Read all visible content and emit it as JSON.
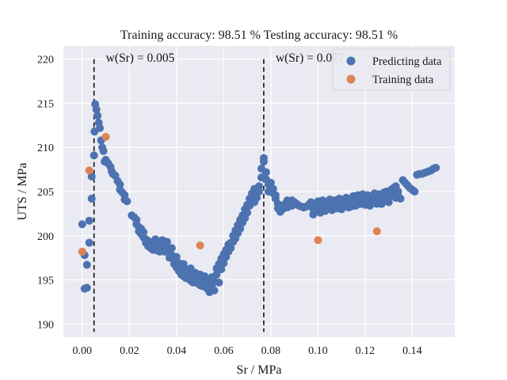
{
  "chart_data": {
    "type": "scatter",
    "title": "Training accuracy: 98.51 %  Testing accuracy: 98.51 %",
    "xlabel": "Sr / MPa",
    "ylabel": "UTS / MPa",
    "xlim": [
      -0.008,
      0.158
    ],
    "ylim": [
      188.5,
      221.5
    ],
    "xticks": [
      0.0,
      0.02,
      0.04,
      0.06,
      0.08,
      0.1,
      0.12,
      0.14
    ],
    "xtick_labels": [
      "0.00",
      "0.02",
      "0.04",
      "0.06",
      "0.08",
      "0.10",
      "0.12",
      "0.14"
    ],
    "yticks": [
      190,
      195,
      200,
      205,
      210,
      215,
      220
    ],
    "ytick_labels": [
      "190",
      "195",
      "200",
      "205",
      "210",
      "215",
      "220"
    ],
    "grid": true,
    "legend_position": "top-right",
    "background_color": "#eaeaf2",
    "vlines": [
      {
        "x": 0.005,
        "label": "w(Sr) = 0.005"
      },
      {
        "x": 0.077,
        "label": "w(Sr) = 0.077"
      }
    ],
    "series": [
      {
        "name": "Predicting data",
        "color": "#4c72b0",
        "points": [
          [
            0.0,
            201.3
          ],
          [
            0.001,
            197.8
          ],
          [
            0.001,
            194.0
          ],
          [
            0.002,
            194.1
          ],
          [
            0.002,
            196.7
          ],
          [
            0.003,
            199.2
          ],
          [
            0.003,
            201.7
          ],
          [
            0.004,
            204.2
          ],
          [
            0.004,
            206.7
          ],
          [
            0.005,
            209.1
          ],
          [
            0.0052,
            211.8
          ],
          [
            0.0055,
            214.9
          ],
          [
            0.006,
            214.3
          ],
          [
            0.0065,
            213.6
          ],
          [
            0.007,
            212.8
          ],
          [
            0.0075,
            212.2
          ],
          [
            0.008,
            210.8
          ],
          [
            0.0085,
            210.0
          ],
          [
            0.009,
            209.6
          ],
          [
            0.0095,
            208.4
          ],
          [
            0.01,
            208.6
          ],
          [
            0.011,
            208.2
          ],
          [
            0.012,
            207.8
          ],
          [
            0.0125,
            207.3
          ],
          [
            0.013,
            207.0
          ],
          [
            0.014,
            206.8
          ],
          [
            0.015,
            206.2
          ],
          [
            0.016,
            205.8
          ],
          [
            0.016,
            205.2
          ],
          [
            0.017,
            204.9
          ],
          [
            0.018,
            204.6
          ],
          [
            0.018,
            204.1
          ],
          [
            0.019,
            203.9
          ],
          [
            0.021,
            202.3
          ],
          [
            0.022,
            202.1
          ],
          [
            0.023,
            201.8
          ],
          [
            0.023,
            201.3
          ],
          [
            0.024,
            201.0
          ],
          [
            0.024,
            200.5
          ],
          [
            0.025,
            200.8
          ],
          [
            0.025,
            200.2
          ],
          [
            0.026,
            199.8
          ],
          [
            0.026,
            200.4
          ],
          [
            0.027,
            199.6
          ],
          [
            0.027,
            199.2
          ],
          [
            0.028,
            199.4
          ],
          [
            0.028,
            198.8
          ],
          [
            0.029,
            198.6
          ],
          [
            0.029,
            199.1
          ],
          [
            0.03,
            198.4
          ],
          [
            0.03,
            199.0
          ],
          [
            0.031,
            198.6
          ],
          [
            0.031,
            199.6
          ],
          [
            0.032,
            199.3
          ],
          [
            0.032,
            198.3
          ],
          [
            0.033,
            199.4
          ],
          [
            0.033,
            198.2
          ],
          [
            0.034,
            198.8
          ],
          [
            0.034,
            199.5
          ],
          [
            0.035,
            199.2
          ],
          [
            0.035,
            198.2
          ],
          [
            0.036,
            198.5
          ],
          [
            0.036,
            199.3
          ],
          [
            0.037,
            198.0
          ],
          [
            0.037,
            197.5
          ],
          [
            0.038,
            197.8
          ],
          [
            0.038,
            198.6
          ],
          [
            0.039,
            197.2
          ],
          [
            0.039,
            196.8
          ],
          [
            0.04,
            197.6
          ],
          [
            0.04,
            196.4
          ],
          [
            0.041,
            196.9
          ],
          [
            0.041,
            196.0
          ],
          [
            0.042,
            196.5
          ],
          [
            0.042,
            195.6
          ],
          [
            0.043,
            196.8
          ],
          [
            0.043,
            195.4
          ],
          [
            0.044,
            196.2
          ],
          [
            0.044,
            195.2
          ],
          [
            0.045,
            195.9
          ],
          [
            0.045,
            195.5
          ],
          [
            0.046,
            196.3
          ],
          [
            0.046,
            194.9
          ],
          [
            0.047,
            195.4
          ],
          [
            0.047,
            194.7
          ],
          [
            0.048,
            195.8
          ],
          [
            0.048,
            194.8
          ],
          [
            0.049,
            195.2
          ],
          [
            0.049,
            194.6
          ],
          [
            0.05,
            195.6
          ],
          [
            0.05,
            194.4
          ],
          [
            0.051,
            195.0
          ],
          [
            0.051,
            194.3
          ],
          [
            0.052,
            195.4
          ],
          [
            0.052,
            194.7
          ],
          [
            0.053,
            194.0
          ],
          [
            0.053,
            195.1
          ],
          [
            0.054,
            194.5
          ],
          [
            0.054,
            193.6
          ],
          [
            0.055,
            194.2
          ],
          [
            0.055,
            195.3
          ],
          [
            0.056,
            194.8
          ],
          [
            0.056,
            193.8
          ],
          [
            0.057,
            196.3
          ],
          [
            0.057,
            195.6
          ],
          [
            0.058,
            196.8
          ],
          [
            0.058,
            194.7
          ],
          [
            0.059,
            197.4
          ],
          [
            0.059,
            196.2
          ],
          [
            0.06,
            197.9
          ],
          [
            0.06,
            196.9
          ],
          [
            0.061,
            198.4
          ],
          [
            0.061,
            197.6
          ],
          [
            0.062,
            199.0
          ],
          [
            0.062,
            198.2
          ],
          [
            0.063,
            199.2
          ],
          [
            0.063,
            198.6
          ],
          [
            0.064,
            200.0
          ],
          [
            0.064,
            199.3
          ],
          [
            0.065,
            200.6
          ],
          [
            0.065,
            199.7
          ],
          [
            0.066,
            201.2
          ],
          [
            0.066,
            200.3
          ],
          [
            0.067,
            201.8
          ],
          [
            0.067,
            200.8
          ],
          [
            0.068,
            202.3
          ],
          [
            0.068,
            201.5
          ],
          [
            0.069,
            203.0
          ],
          [
            0.069,
            202.0
          ],
          [
            0.07,
            203.5
          ],
          [
            0.07,
            202.6
          ],
          [
            0.071,
            204.2
          ],
          [
            0.071,
            203.4
          ],
          [
            0.072,
            204.8
          ],
          [
            0.072,
            204.0
          ],
          [
            0.073,
            205.3
          ],
          [
            0.073,
            203.8
          ],
          [
            0.074,
            204.3
          ],
          [
            0.075,
            205.0
          ],
          [
            0.075,
            205.6
          ],
          [
            0.076,
            206.6
          ],
          [
            0.076,
            207.6
          ],
          [
            0.077,
            208.4
          ],
          [
            0.077,
            208.8
          ],
          [
            0.078,
            207.2
          ],
          [
            0.078,
            206.4
          ],
          [
            0.079,
            205.8
          ],
          [
            0.079,
            205.0
          ],
          [
            0.08,
            206.0
          ],
          [
            0.08,
            205.5
          ],
          [
            0.081,
            204.8
          ],
          [
            0.081,
            205.3
          ],
          [
            0.082,
            204.6
          ],
          [
            0.082,
            204.2
          ],
          [
            0.083,
            203.6
          ],
          [
            0.083,
            203.1
          ],
          [
            0.084,
            203.4
          ],
          [
            0.084,
            202.7
          ],
          [
            0.085,
            203.0
          ],
          [
            0.086,
            203.6
          ],
          [
            0.087,
            204.0
          ],
          [
            0.087,
            203.2
          ],
          [
            0.088,
            203.7
          ],
          [
            0.089,
            204.0
          ],
          [
            0.089,
            203.4
          ],
          [
            0.09,
            203.8
          ],
          [
            0.091,
            203.6
          ],
          [
            0.092,
            203.4
          ],
          [
            0.093,
            203.3
          ],
          [
            0.094,
            203.2
          ],
          [
            0.095,
            203.3
          ],
          [
            0.096,
            203.5
          ],
          [
            0.097,
            203.8
          ],
          [
            0.098,
            203.0
          ],
          [
            0.098,
            202.4
          ],
          [
            0.099,
            203.6
          ],
          [
            0.099,
            202.8
          ],
          [
            0.1,
            203.9
          ],
          [
            0.1,
            203.2
          ],
          [
            0.101,
            202.6
          ],
          [
            0.101,
            203.7
          ],
          [
            0.102,
            203.1
          ],
          [
            0.102,
            204.0
          ],
          [
            0.103,
            203.4
          ],
          [
            0.103,
            202.8
          ],
          [
            0.104,
            203.8
          ],
          [
            0.104,
            203.0
          ],
          [
            0.105,
            203.5
          ],
          [
            0.105,
            204.1
          ],
          [
            0.106,
            202.9
          ],
          [
            0.106,
            203.6
          ],
          [
            0.107,
            204.0
          ],
          [
            0.107,
            203.3
          ],
          [
            0.108,
            203.9
          ],
          [
            0.108,
            203.1
          ],
          [
            0.109,
            204.2
          ],
          [
            0.109,
            203.5
          ],
          [
            0.11,
            203.8
          ],
          [
            0.11,
            203.0
          ],
          [
            0.111,
            204.1
          ],
          [
            0.111,
            203.4
          ],
          [
            0.112,
            204.3
          ],
          [
            0.112,
            203.6
          ],
          [
            0.113,
            203.2
          ],
          [
            0.113,
            204.0
          ],
          [
            0.114,
            203.7
          ],
          [
            0.114,
            203.3
          ],
          [
            0.115,
            204.5
          ],
          [
            0.115,
            203.8
          ],
          [
            0.116,
            204.2
          ],
          [
            0.116,
            203.4
          ],
          [
            0.117,
            204.6
          ],
          [
            0.117,
            203.9
          ],
          [
            0.118,
            204.4
          ],
          [
            0.118,
            203.6
          ],
          [
            0.119,
            204.7
          ],
          [
            0.119,
            204.0
          ],
          [
            0.12,
            203.5
          ],
          [
            0.12,
            204.4
          ],
          [
            0.121,
            203.8
          ],
          [
            0.121,
            204.6
          ],
          [
            0.122,
            204.0
          ],
          [
            0.122,
            203.4
          ],
          [
            0.123,
            204.3
          ],
          [
            0.123,
            203.7
          ],
          [
            0.124,
            204.8
          ],
          [
            0.124,
            204.1
          ],
          [
            0.125,
            203.6
          ],
          [
            0.125,
            204.5
          ],
          [
            0.126,
            203.9
          ],
          [
            0.126,
            204.7
          ],
          [
            0.127,
            204.2
          ],
          [
            0.127,
            203.6
          ],
          [
            0.128,
            204.9
          ],
          [
            0.128,
            204.3
          ],
          [
            0.129,
            204.0
          ],
          [
            0.129,
            205.0
          ],
          [
            0.13,
            204.4
          ],
          [
            0.13,
            203.8
          ],
          [
            0.131,
            205.2
          ],
          [
            0.131,
            204.6
          ],
          [
            0.132,
            205.4
          ],
          [
            0.132,
            204.8
          ],
          [
            0.133,
            204.3
          ],
          [
            0.133,
            205.6
          ],
          [
            0.134,
            205.0
          ],
          [
            0.134,
            204.5
          ],
          [
            0.135,
            204.2
          ],
          [
            0.136,
            206.3
          ],
          [
            0.137,
            206.0
          ],
          [
            0.138,
            205.7
          ],
          [
            0.139,
            205.4
          ],
          [
            0.14,
            205.2
          ],
          [
            0.141,
            205.0
          ],
          [
            0.142,
            206.9
          ],
          [
            0.143,
            207.0
          ],
          [
            0.144,
            207.0
          ],
          [
            0.145,
            207.1
          ],
          [
            0.146,
            207.2
          ],
          [
            0.147,
            207.3
          ],
          [
            0.148,
            207.4
          ],
          [
            0.149,
            207.6
          ],
          [
            0.15,
            207.7
          ]
        ]
      },
      {
        "name": "Training data",
        "color": "#dd8452",
        "points": [
          [
            0.0,
            198.2
          ],
          [
            0.003,
            207.4
          ],
          [
            0.01,
            211.2
          ],
          [
            0.05,
            198.9
          ],
          [
            0.1,
            199.5
          ],
          [
            0.125,
            200.5
          ]
        ]
      }
    ]
  }
}
